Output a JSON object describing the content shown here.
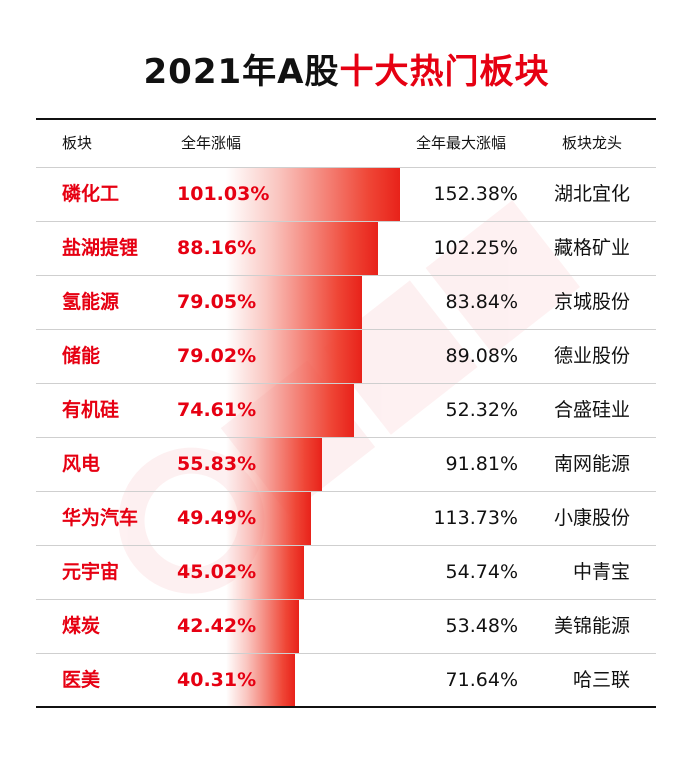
{
  "title": {
    "part1": "2021年A股",
    "part2": "十大热门板块"
  },
  "headers": {
    "sector": "板块",
    "annual_gain": "全年涨幅",
    "max_gain": "全年最大涨幅",
    "leader": "板块龙头"
  },
  "chart_data": {
    "type": "table",
    "title": "2021年A股十大热门板块",
    "columns": [
      "板块",
      "全年涨幅",
      "全年最大涨幅",
      "板块龙头"
    ],
    "bar_column": "全年涨幅",
    "rows": [
      {
        "sector": "磷化工",
        "annual_gain": 101.03,
        "annual_gain_label": "101.03%",
        "max_gain_label": "152.38%",
        "leader": "湖北宜化"
      },
      {
        "sector": "盐湖提锂",
        "annual_gain": 88.16,
        "annual_gain_label": "88.16%",
        "max_gain_label": "102.25%",
        "leader": "藏格矿业"
      },
      {
        "sector": "氢能源",
        "annual_gain": 79.05,
        "annual_gain_label": "79.05%",
        "max_gain_label": "83.84%",
        "leader": "京城股份"
      },
      {
        "sector": "储能",
        "annual_gain": 79.02,
        "annual_gain_label": "79.02%",
        "max_gain_label": "89.08%",
        "leader": "德业股份"
      },
      {
        "sector": "有机硅",
        "annual_gain": 74.61,
        "annual_gain_label": "74.61%",
        "max_gain_label": "52.32%",
        "leader": "合盛硅业"
      },
      {
        "sector": "风电",
        "annual_gain": 55.83,
        "annual_gain_label": "55.83%",
        "max_gain_label": "91.81%",
        "leader": "南网能源"
      },
      {
        "sector": "华为汽车",
        "annual_gain": 49.49,
        "annual_gain_label": "49.49%",
        "max_gain_label": "113.73%",
        "leader": "小康股份"
      },
      {
        "sector": "元宇宙",
        "annual_gain": 45.02,
        "annual_gain_label": "45.02%",
        "max_gain_label": "54.74%",
        "leader": "中青宝"
      },
      {
        "sector": "煤炭",
        "annual_gain": 42.42,
        "annual_gain_label": "42.42%",
        "max_gain_label": "53.48%",
        "leader": "美锦能源"
      },
      {
        "sector": "医美",
        "annual_gain": 40.31,
        "annual_gain_label": "40.31%",
        "max_gain_label": "71.64%",
        "leader": "哈三联"
      }
    ]
  },
  "colors": {
    "accent": "#e60012",
    "text": "#111111",
    "separator": "#cfcfcf",
    "bar_end": "#e8221a"
  }
}
